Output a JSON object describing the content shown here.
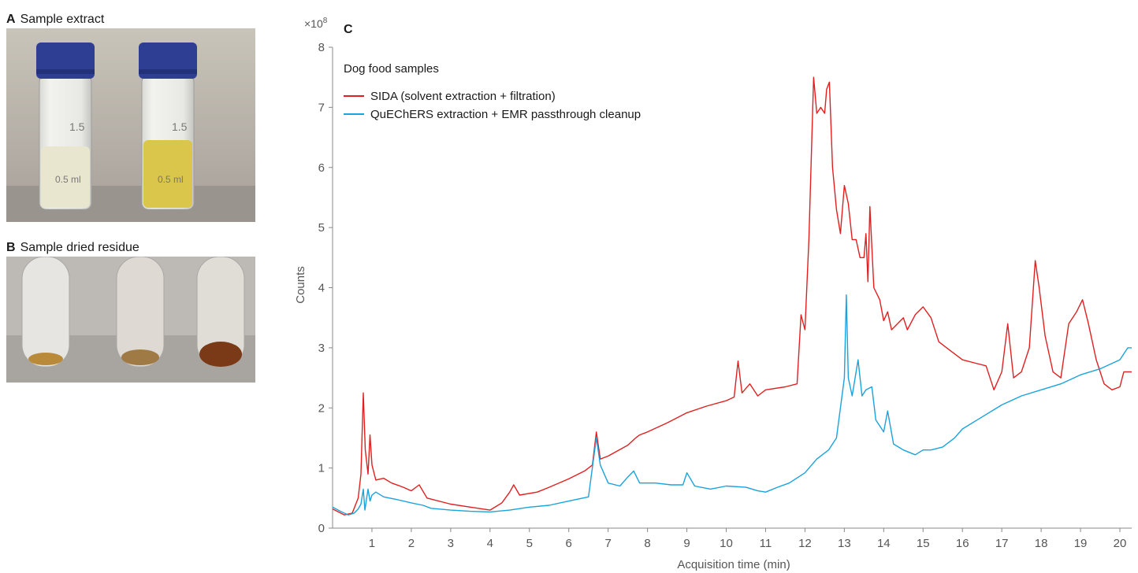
{
  "panels": {
    "a": {
      "letter": "A",
      "title": "Sample extract"
    },
    "b": {
      "letter": "B",
      "title": "Sample dried residue"
    },
    "c": {
      "letter": "C"
    }
  },
  "photo_a": {
    "vial_labels": [
      "1.5",
      "0.5 ml",
      "1.5",
      "0.5 ml"
    ],
    "liquid_colors": [
      "#e9e6cf",
      "#d9c64a"
    ],
    "cap_color": "#2e3f93"
  },
  "photo_b": {
    "residue_colors": [
      "#b98a3a",
      "#a07a45",
      "#7a3a18"
    ]
  },
  "chart_data": {
    "type": "line",
    "xlabel": "Acquisition time (min)",
    "ylabel": "Counts",
    "y_multiplier": "×10",
    "y_exponent": "8",
    "xlim": [
      0,
      20.3
    ],
    "ylim": [
      0,
      8
    ],
    "x_ticks": [
      1,
      2,
      3,
      4,
      5,
      6,
      7,
      8,
      9,
      10,
      11,
      12,
      13,
      14,
      15,
      16,
      17,
      18,
      19,
      20
    ],
    "y_ticks": [
      0,
      1,
      2,
      3,
      4,
      5,
      6,
      7,
      8
    ],
    "legend_title": "Dog food samples",
    "legend_position": "top-left",
    "series": [
      {
        "name": "SIDA (solvent extraction + filtration)",
        "color": "#e02020",
        "points": [
          [
            0,
            0.32
          ],
          [
            0.3,
            0.22
          ],
          [
            0.5,
            0.25
          ],
          [
            0.65,
            0.5
          ],
          [
            0.72,
            0.9
          ],
          [
            0.78,
            2.25
          ],
          [
            0.83,
            1.3
          ],
          [
            0.9,
            0.9
          ],
          [
            0.95,
            1.55
          ],
          [
            1.0,
            1.05
          ],
          [
            1.1,
            0.8
          ],
          [
            1.3,
            0.83
          ],
          [
            1.5,
            0.75
          ],
          [
            1.8,
            0.68
          ],
          [
            2.0,
            0.62
          ],
          [
            2.2,
            0.72
          ],
          [
            2.4,
            0.5
          ],
          [
            3.0,
            0.4
          ],
          [
            3.5,
            0.35
          ],
          [
            4.0,
            0.3
          ],
          [
            4.3,
            0.42
          ],
          [
            4.5,
            0.6
          ],
          [
            4.6,
            0.72
          ],
          [
            4.75,
            0.55
          ],
          [
            5.2,
            0.6
          ],
          [
            5.5,
            0.68
          ],
          [
            6.0,
            0.82
          ],
          [
            6.4,
            0.95
          ],
          [
            6.6,
            1.05
          ],
          [
            6.7,
            1.6
          ],
          [
            6.8,
            1.15
          ],
          [
            7.0,
            1.2
          ],
          [
            7.5,
            1.38
          ],
          [
            7.7,
            1.5
          ],
          [
            7.8,
            1.55
          ],
          [
            8.0,
            1.6
          ],
          [
            8.5,
            1.75
          ],
          [
            9.0,
            1.92
          ],
          [
            9.5,
            2.03
          ],
          [
            10.0,
            2.12
          ],
          [
            10.2,
            2.18
          ],
          [
            10.3,
            2.78
          ],
          [
            10.4,
            2.25
          ],
          [
            10.6,
            2.4
          ],
          [
            10.8,
            2.2
          ],
          [
            11.0,
            2.3
          ],
          [
            11.5,
            2.35
          ],
          [
            11.8,
            2.4
          ],
          [
            11.9,
            3.55
          ],
          [
            12.0,
            3.3
          ],
          [
            12.1,
            4.8
          ],
          [
            12.22,
            7.5
          ],
          [
            12.3,
            6.9
          ],
          [
            12.4,
            7.0
          ],
          [
            12.5,
            6.9
          ],
          [
            12.55,
            7.3
          ],
          [
            12.62,
            7.42
          ],
          [
            12.7,
            6.0
          ],
          [
            12.8,
            5.3
          ],
          [
            12.9,
            4.9
          ],
          [
            13.0,
            5.7
          ],
          [
            13.1,
            5.4
          ],
          [
            13.2,
            4.8
          ],
          [
            13.3,
            4.8
          ],
          [
            13.4,
            4.5
          ],
          [
            13.5,
            4.5
          ],
          [
            13.55,
            4.9
          ],
          [
            13.6,
            4.1
          ],
          [
            13.65,
            5.35
          ],
          [
            13.75,
            4.0
          ],
          [
            13.9,
            3.8
          ],
          [
            14.0,
            3.45
          ],
          [
            14.1,
            3.6
          ],
          [
            14.2,
            3.3
          ],
          [
            14.5,
            3.5
          ],
          [
            14.6,
            3.3
          ],
          [
            14.8,
            3.55
          ],
          [
            15.0,
            3.68
          ],
          [
            15.2,
            3.5
          ],
          [
            15.4,
            3.1
          ],
          [
            15.6,
            3.0
          ],
          [
            16.0,
            2.8
          ],
          [
            16.3,
            2.75
          ],
          [
            16.6,
            2.7
          ],
          [
            16.8,
            2.3
          ],
          [
            17.0,
            2.6
          ],
          [
            17.15,
            3.4
          ],
          [
            17.3,
            2.5
          ],
          [
            17.5,
            2.6
          ],
          [
            17.7,
            3.0
          ],
          [
            17.85,
            4.45
          ],
          [
            17.95,
            4.0
          ],
          [
            18.1,
            3.2
          ],
          [
            18.3,
            2.6
          ],
          [
            18.5,
            2.5
          ],
          [
            18.7,
            3.4
          ],
          [
            18.9,
            3.6
          ],
          [
            19.05,
            3.8
          ],
          [
            19.2,
            3.4
          ],
          [
            19.4,
            2.8
          ],
          [
            19.6,
            2.4
          ],
          [
            19.8,
            2.3
          ],
          [
            20.0,
            2.35
          ],
          [
            20.1,
            2.6
          ],
          [
            20.3,
            2.6
          ]
        ]
      },
      {
        "name": "QuEChERS extraction + EMR passthrough cleanup",
        "color": "#1aa3dc",
        "points": [
          [
            0,
            0.35
          ],
          [
            0.2,
            0.28
          ],
          [
            0.4,
            0.22
          ],
          [
            0.55,
            0.25
          ],
          [
            0.65,
            0.32
          ],
          [
            0.72,
            0.4
          ],
          [
            0.78,
            0.65
          ],
          [
            0.82,
            0.3
          ],
          [
            0.9,
            0.65
          ],
          [
            0.95,
            0.45
          ],
          [
            1.0,
            0.55
          ],
          [
            1.1,
            0.6
          ],
          [
            1.3,
            0.52
          ],
          [
            1.6,
            0.48
          ],
          [
            2.0,
            0.42
          ],
          [
            2.3,
            0.38
          ],
          [
            2.5,
            0.33
          ],
          [
            3.0,
            0.3
          ],
          [
            3.5,
            0.28
          ],
          [
            4.0,
            0.27
          ],
          [
            4.5,
            0.3
          ],
          [
            5.0,
            0.35
          ],
          [
            5.5,
            0.38
          ],
          [
            6.0,
            0.45
          ],
          [
            6.5,
            0.52
          ],
          [
            6.7,
            1.5
          ],
          [
            6.8,
            1.05
          ],
          [
            7.0,
            0.75
          ],
          [
            7.3,
            0.7
          ],
          [
            7.5,
            0.85
          ],
          [
            7.65,
            0.95
          ],
          [
            7.8,
            0.75
          ],
          [
            8.2,
            0.75
          ],
          [
            8.6,
            0.72
          ],
          [
            8.9,
            0.72
          ],
          [
            9.0,
            0.92
          ],
          [
            9.2,
            0.7
          ],
          [
            9.6,
            0.65
          ],
          [
            10.0,
            0.7
          ],
          [
            10.5,
            0.68
          ],
          [
            10.8,
            0.62
          ],
          [
            11.0,
            0.6
          ],
          [
            11.3,
            0.68
          ],
          [
            11.6,
            0.75
          ],
          [
            12.0,
            0.92
          ],
          [
            12.3,
            1.15
          ],
          [
            12.6,
            1.3
          ],
          [
            12.8,
            1.5
          ],
          [
            12.9,
            2.0
          ],
          [
            13.0,
            2.5
          ],
          [
            13.05,
            3.88
          ],
          [
            13.1,
            2.5
          ],
          [
            13.2,
            2.2
          ],
          [
            13.35,
            2.8
          ],
          [
            13.45,
            2.2
          ],
          [
            13.55,
            2.3
          ],
          [
            13.7,
            2.35
          ],
          [
            13.8,
            1.8
          ],
          [
            14.0,
            1.6
          ],
          [
            14.1,
            1.95
          ],
          [
            14.25,
            1.4
          ],
          [
            14.5,
            1.3
          ],
          [
            14.8,
            1.22
          ],
          [
            15.0,
            1.3
          ],
          [
            15.2,
            1.3
          ],
          [
            15.5,
            1.35
          ],
          [
            15.8,
            1.5
          ],
          [
            16.0,
            1.65
          ],
          [
            16.5,
            1.85
          ],
          [
            17.0,
            2.05
          ],
          [
            17.5,
            2.2
          ],
          [
            18.0,
            2.3
          ],
          [
            18.5,
            2.4
          ],
          [
            19.0,
            2.55
          ],
          [
            19.5,
            2.65
          ],
          [
            20.0,
            2.8
          ],
          [
            20.2,
            3.0
          ],
          [
            20.3,
            3.0
          ]
        ]
      }
    ]
  }
}
